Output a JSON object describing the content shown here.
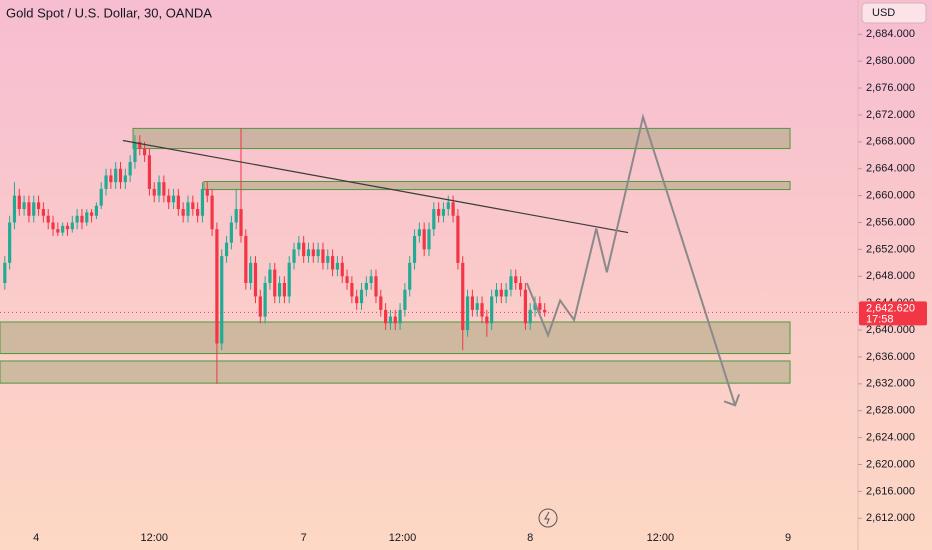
{
  "header": {
    "title": "Gold Spot / U.S. Dollar, 30, OANDA",
    "currency": "USD"
  },
  "chart_data": {
    "type": "candlestick",
    "x": [
      1,
      2,
      3,
      4,
      5,
      6,
      7,
      8,
      9,
      10,
      11,
      12,
      13,
      14,
      15,
      16,
      17,
      18,
      19,
      20,
      21,
      22,
      23,
      24,
      25,
      26,
      27,
      28,
      29,
      30,
      31,
      32,
      33,
      34,
      35,
      36,
      37,
      38,
      39,
      40,
      41,
      42,
      43,
      44,
      45,
      46,
      47,
      48,
      49,
      50,
      51,
      52,
      53,
      54,
      55,
      56,
      57,
      58,
      59,
      60,
      61,
      62,
      63,
      64,
      65,
      66,
      67,
      68,
      69,
      70,
      71,
      72,
      73,
      74,
      75,
      76,
      77,
      78,
      79,
      80,
      81,
      82,
      83,
      84,
      85,
      86,
      87,
      88,
      89,
      90,
      91,
      92,
      93,
      94,
      95,
      96,
      97,
      98,
      99,
      100,
      101,
      102,
      103,
      104,
      105,
      106,
      107,
      108,
      109,
      110,
      111,
      112,
      113
    ],
    "candles": [
      [
        2647,
        2651,
        2646,
        2650
      ],
      [
        2650,
        2657,
        2649,
        2656
      ],
      [
        2656,
        2662,
        2655,
        2660
      ],
      [
        2660,
        2661,
        2657,
        2658
      ],
      [
        2658,
        2660,
        2657,
        2659
      ],
      [
        2659,
        2660,
        2656,
        2657
      ],
      [
        2657,
        2660,
        2656,
        2659
      ],
      [
        2659,
        2660,
        2657,
        2658
      ],
      [
        2658,
        2659,
        2656,
        2657
      ],
      [
        2657,
        2658,
        2655,
        2656
      ],
      [
        2656,
        2657,
        2654,
        2655
      ],
      [
        2655,
        2656,
        2654,
        2654.5
      ],
      [
        2654.5,
        2656,
        2654,
        2655.5
      ],
      [
        2655.5,
        2656,
        2654,
        2655
      ],
      [
        2655,
        2657,
        2654.5,
        2656
      ],
      [
        2656,
        2658,
        2655,
        2657
      ],
      [
        2657,
        2658,
        2655,
        2656
      ],
      [
        2656,
        2658,
        2655.5,
        2657.5
      ],
      [
        2657.5,
        2658,
        2656,
        2657
      ],
      [
        2657,
        2659,
        2656.5,
        2658.5
      ],
      [
        2658.5,
        2662,
        2658,
        2661
      ],
      [
        2661,
        2664,
        2660,
        2663
      ],
      [
        2663,
        2664,
        2661,
        2662
      ],
      [
        2662,
        2665,
        2661,
        2664
      ],
      [
        2664,
        2665,
        2661,
        2662
      ],
      [
        2662,
        2664,
        2661,
        2663
      ],
      [
        2663,
        2666,
        2662,
        2665
      ],
      [
        2665,
        2669,
        2664,
        2668
      ],
      [
        2668,
        2669,
        2666,
        2667
      ],
      [
        2667,
        2668,
        2665,
        2666
      ],
      [
        2666,
        2667,
        2660,
        2661
      ],
      [
        2661,
        2662,
        2659,
        2660
      ],
      [
        2660,
        2663,
        2659,
        2662
      ],
      [
        2662,
        2663,
        2659,
        2660
      ],
      [
        2660,
        2661,
        2658,
        2659
      ],
      [
        2659,
        2661,
        2658,
        2660
      ],
      [
        2660,
        2661,
        2657,
        2658
      ],
      [
        2658,
        2659,
        2656,
        2657
      ],
      [
        2657,
        2660,
        2656,
        2659
      ],
      [
        2659,
        2660,
        2657,
        2658
      ],
      [
        2658,
        2659,
        2656,
        2657
      ],
      [
        2657,
        2662,
        2656,
        2661
      ],
      [
        2661,
        2662,
        2659,
        2660
      ],
      [
        2660,
        2661,
        2654,
        2655
      ],
      [
        2655,
        2656,
        2632,
        2638
      ],
      [
        2638,
        2652,
        2637,
        2651
      ],
      [
        2651,
        2654,
        2650,
        2653
      ],
      [
        2653,
        2657,
        2652,
        2656
      ],
      [
        2656,
        2661,
        2655,
        2658
      ],
      [
        2658,
        2670,
        2653,
        2654
      ],
      [
        2654,
        2655,
        2646,
        2647
      ],
      [
        2647,
        2651,
        2646,
        2650
      ],
      [
        2650,
        2651,
        2644,
        2645
      ],
      [
        2645,
        2646,
        2641,
        2642
      ],
      [
        2642,
        2648,
        2641,
        2647
      ],
      [
        2647,
        2650,
        2646,
        2649
      ],
      [
        2649,
        2650,
        2644,
        2645
      ],
      [
        2645,
        2648,
        2644,
        2647
      ],
      [
        2647,
        2648,
        2644,
        2645
      ],
      [
        2645,
        2651,
        2644,
        2650
      ],
      [
        2650,
        2653,
        2649,
        2652
      ],
      [
        2652,
        2654,
        2651,
        2653
      ],
      [
        2653,
        2654,
        2650,
        2651
      ],
      [
        2651,
        2653,
        2650,
        2652
      ],
      [
        2652,
        2653,
        2650,
        2651
      ],
      [
        2651,
        2653,
        2650,
        2652
      ],
      [
        2652,
        2653,
        2649,
        2650
      ],
      [
        2650,
        2652,
        2649,
        2651
      ],
      [
        2651,
        2652,
        2648,
        2649
      ],
      [
        2649,
        2651,
        2648,
        2650
      ],
      [
        2650,
        2651,
        2647,
        2648
      ],
      [
        2648,
        2649,
        2646,
        2647
      ],
      [
        2647,
        2648,
        2644,
        2645
      ],
      [
        2645,
        2646,
        2643,
        2644
      ],
      [
        2644,
        2647,
        2643,
        2646
      ],
      [
        2646,
        2648,
        2645,
        2647
      ],
      [
        2647,
        2649,
        2646,
        2648
      ],
      [
        2648,
        2649,
        2644,
        2645
      ],
      [
        2645,
        2646,
        2642,
        2643
      ],
      [
        2643,
        2644,
        2640,
        2641
      ],
      [
        2641,
        2643,
        2640,
        2642
      ],
      [
        2642,
        2643,
        2640,
        2641
      ],
      [
        2641,
        2644,
        2640,
        2643
      ],
      [
        2643,
        2647,
        2642,
        2646
      ],
      [
        2646,
        2651,
        2645,
        2650
      ],
      [
        2650,
        2655,
        2649,
        2654
      ],
      [
        2654,
        2656,
        2653,
        2655
      ],
      [
        2655,
        2656,
        2651,
        2652
      ],
      [
        2652,
        2656,
        2651,
        2655
      ],
      [
        2655,
        2659,
        2654,
        2658
      ],
      [
        2658,
        2659,
        2656,
        2657
      ],
      [
        2657,
        2659,
        2656,
        2658
      ],
      [
        2658,
        2660,
        2657,
        2659
      ],
      [
        2659,
        2660,
        2656,
        2657
      ],
      [
        2657,
        2658,
        2649,
        2650
      ],
      [
        2650,
        2651,
        2637,
        2640
      ],
      [
        2640,
        2646,
        2639,
        2645
      ],
      [
        2645,
        2646,
        2642,
        2643
      ],
      [
        2643,
        2645,
        2642,
        2644
      ],
      [
        2644,
        2645,
        2641,
        2642
      ],
      [
        2642,
        2643,
        2639,
        2641
      ],
      [
        2641,
        2646,
        2640,
        2645
      ],
      [
        2645,
        2647,
        2644,
        2646
      ],
      [
        2646,
        2647,
        2644,
        2645
      ],
      [
        2645,
        2647,
        2644,
        2646
      ],
      [
        2646,
        2649,
        2645,
        2648
      ],
      [
        2648,
        2649,
        2646,
        2647
      ],
      [
        2647,
        2648,
        2645,
        2646
      ],
      [
        2646,
        2647,
        2640,
        2641
      ],
      [
        2641,
        2644,
        2640,
        2643
      ],
      [
        2643,
        2645,
        2642,
        2644
      ],
      [
        2644,
        2645,
        2642,
        2643
      ],
      [
        2643,
        2644,
        2642,
        2642.62
      ]
    ],
    "up_color": "#22ab94",
    "down_color": "#f23645",
    "xlim": [
      0,
      178
    ],
    "xticks": [
      {
        "value": 7.5,
        "label": "4"
      },
      {
        "value": 32,
        "label": "12:00"
      },
      {
        "value": 63,
        "label": "7"
      },
      {
        "value": 83.5,
        "label": "12:00"
      },
      {
        "value": 110,
        "label": "8"
      },
      {
        "value": 137,
        "label": "12:00"
      },
      {
        "value": 163.5,
        "label": "9"
      }
    ],
    "ylim": [
      2610.7,
      2689.1
    ],
    "yticks": [
      {
        "value": 2612,
        "label": "2,612.000"
      },
      {
        "value": 2616,
        "label": "2,616.000"
      },
      {
        "value": 2620,
        "label": "2,620.000"
      },
      {
        "value": 2624,
        "label": "2,624.000"
      },
      {
        "value": 2628,
        "label": "2,628.000"
      },
      {
        "value": 2632,
        "label": "2,632.000"
      },
      {
        "value": 2636,
        "label": "2,636.000"
      },
      {
        "value": 2640,
        "label": "2,640.000"
      },
      {
        "value": 2644,
        "label": "2,644.000"
      },
      {
        "value": 2648,
        "label": "2,648.000"
      },
      {
        "value": 2652,
        "label": "2,652.000"
      },
      {
        "value": 2656,
        "label": "2,656.000"
      },
      {
        "value": 2660,
        "label": "2,660.000"
      },
      {
        "value": 2664,
        "label": "2,664.000"
      },
      {
        "value": 2668,
        "label": "2,668.000"
      },
      {
        "value": 2672,
        "label": "2,672.000"
      },
      {
        "value": 2676,
        "label": "2,676.000"
      },
      {
        "value": 2680,
        "label": "2,680.000"
      },
      {
        "value": 2684,
        "label": "2,684.000"
      }
    ],
    "last_price": {
      "value": 2642.62,
      "label": "2,642.620",
      "countdown": "17:58"
    },
    "zones": [
      {
        "x": [
          27.6,
          163.9
        ],
        "y": [
          2667,
          2670
        ]
      },
      {
        "x": [
          42.3,
          163.9
        ],
        "y": [
          2660.9,
          2662.1
        ]
      },
      {
        "x": [
          0,
          163.9
        ],
        "y": [
          2636.5,
          2641.2
        ]
      },
      {
        "x": [
          0,
          163.9
        ],
        "y": [
          2632.1,
          2635.4
        ]
      }
    ],
    "trendline": {
      "x": [
        25.5,
        130.3
      ],
      "y": [
        2668.2,
        2654.5
      ]
    },
    "projection": {
      "x": [
        109.3,
        113.7,
        116.2,
        119.1,
        123.7,
        125.9,
        133.4,
        152.5
      ],
      "y": [
        2647,
        2639.2,
        2644.4,
        2641.5,
        2655.1,
        2648.6,
        2671.7,
        2628.8
      ]
    }
  }
}
